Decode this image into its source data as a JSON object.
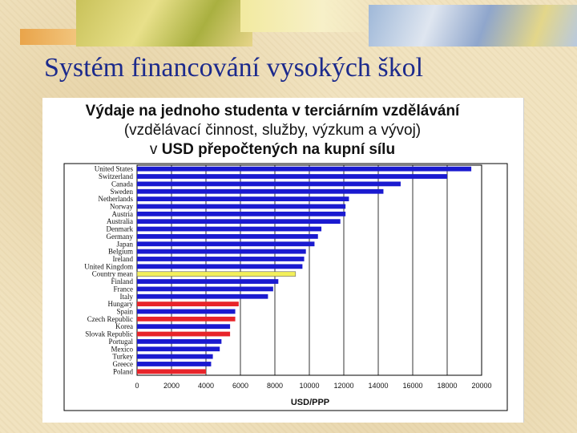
{
  "slide": {
    "title": "Systém financování vysokých škol"
  },
  "colors": {
    "title": "#1c2a8c",
    "bar_default": "#1a1ad0",
    "bar_mean": "#f2ef5a",
    "bar_highlight": "#e8242a"
  },
  "chart_data": {
    "type": "bar",
    "orientation": "horizontal",
    "title": "Výdaje na jednoho studenta v terciárním vzdělávání",
    "subtitle": "(vzdělávací činnost, služby, výzkum a vývoj)",
    "subtitle2_prefix": "v ",
    "subtitle2_bold": "USD přepočtených na kupní sílu",
    "xlabel": "USD/PPP",
    "xlim": [
      0,
      20000
    ],
    "xticks": [
      0,
      2000,
      4000,
      6000,
      8000,
      10000,
      12000,
      14000,
      16000,
      18000,
      20000
    ],
    "grid": true,
    "bars": [
      {
        "label": "United States",
        "value": 19400,
        "color": "default"
      },
      {
        "label": "Switzerland",
        "value": 18000,
        "color": "default"
      },
      {
        "label": "Canada",
        "value": 15300,
        "color": "default"
      },
      {
        "label": "Sweden",
        "value": 14300,
        "color": "default"
      },
      {
        "label": "Netherlands",
        "value": 12300,
        "color": "default"
      },
      {
        "label": "Norway",
        "value": 12100,
        "color": "default"
      },
      {
        "label": "Austria",
        "value": 12100,
        "color": "default"
      },
      {
        "label": "Australia",
        "value": 11800,
        "color": "default"
      },
      {
        "label": "Denmark",
        "value": 10700,
        "color": "default"
      },
      {
        "label": "Germany",
        "value": 10500,
        "color": "default"
      },
      {
        "label": "Japan",
        "value": 10300,
        "color": "default"
      },
      {
        "label": "Belgium",
        "value": 9800,
        "color": "default"
      },
      {
        "label": "Ireland",
        "value": 9700,
        "color": "default"
      },
      {
        "label": "United Kingdom",
        "value": 9600,
        "color": "default"
      },
      {
        "label": "Country mean",
        "value": 9200,
        "color": "mean"
      },
      {
        "label": "Finland",
        "value": 8200,
        "color": "default"
      },
      {
        "label": "France",
        "value": 7900,
        "color": "default"
      },
      {
        "label": "Italy",
        "value": 7600,
        "color": "default"
      },
      {
        "label": "Hungary",
        "value": 5900,
        "color": "highlight"
      },
      {
        "label": "Spain",
        "value": 5700,
        "color": "default"
      },
      {
        "label": "Czech Republic",
        "value": 5700,
        "color": "highlight"
      },
      {
        "label": "Korea",
        "value": 5400,
        "color": "default"
      },
      {
        "label": "Slovak Republic",
        "value": 5400,
        "color": "highlight"
      },
      {
        "label": "Portugal",
        "value": 4900,
        "color": "default"
      },
      {
        "label": "Mexico",
        "value": 4800,
        "color": "default"
      },
      {
        "label": "Turkey",
        "value": 4400,
        "color": "default"
      },
      {
        "label": "Greece",
        "value": 4300,
        "color": "default"
      },
      {
        "label": "Poland",
        "value": 4000,
        "color": "highlight"
      }
    ]
  }
}
